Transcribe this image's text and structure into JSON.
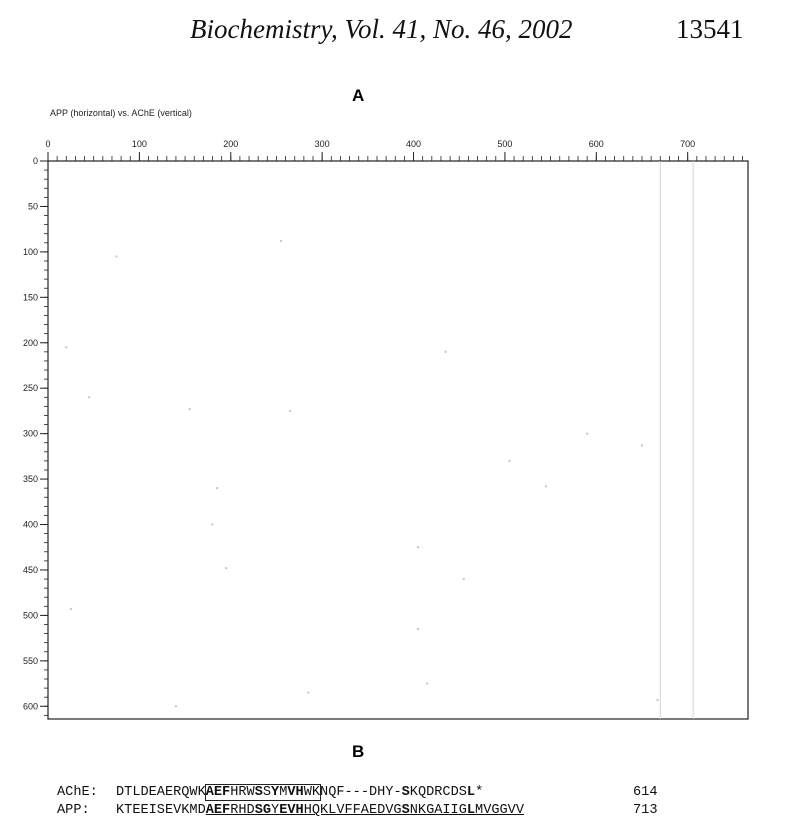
{
  "header": {
    "journal": "Biochemistry, Vol. 41, No. 46, 2002",
    "page": 13541
  },
  "panel_a_label": "A",
  "panel_b_label": "B",
  "chart_data": {
    "type": "scatter",
    "title": "APP (horizontal) vs. AChE (vertical)",
    "x": [
      75,
      255,
      20,
      435,
      45,
      155,
      265,
      650,
      590,
      505,
      545,
      185,
      180,
      195,
      455,
      405,
      25,
      405,
      415,
      285,
      140,
      667
    ],
    "y": [
      105,
      88,
      205,
      210,
      260,
      273,
      275,
      313,
      300,
      330,
      358,
      360,
      400,
      448,
      460,
      425,
      493,
      515,
      575,
      585,
      600,
      593
    ],
    "color": "#c8c8c8",
    "vertical_lines": [
      670,
      706
    ],
    "xlim": [
      0,
      766
    ],
    "ylim": [
      0,
      614
    ],
    "xticks": [
      0,
      100,
      200,
      300,
      400,
      500,
      600,
      700
    ],
    "yticks": [
      0,
      50,
      100,
      150,
      200,
      250,
      300,
      350,
      400,
      450,
      500,
      550,
      600
    ],
    "minor_tick_step": 10
  },
  "alignment": {
    "rows": [
      {
        "label": "AChE:",
        "number": 614,
        "segments": [
          {
            "text": "DTLDEAERQWK"
          },
          {
            "text": "AEF",
            "bold": true,
            "boxed": true
          },
          {
            "text": "HRW",
            "boxed": true
          },
          {
            "text": "S",
            "bold": true,
            "boxed": true
          },
          {
            "text": "S",
            "boxed": true
          },
          {
            "text": "Y",
            "bold": true,
            "boxed": true
          },
          {
            "text": "M",
            "boxed": true
          },
          {
            "text": "VH",
            "bold": true,
            "boxed": true
          },
          {
            "text": "WK",
            "boxed": true
          },
          {
            "text": "NQF---DHY-"
          },
          {
            "text": "S",
            "bold": true
          },
          {
            "text": "KQDRCDS"
          },
          {
            "text": "L",
            "bold": true
          },
          {
            "text": "*"
          }
        ]
      },
      {
        "label": "APP:",
        "number": 713,
        "segments": [
          {
            "text": "KTEEISEVKMD"
          },
          {
            "text": "AEF",
            "bold": true,
            "underlined": true
          },
          {
            "text": "RHD",
            "underlined": true
          },
          {
            "text": "SG",
            "bold": true,
            "underlined": true
          },
          {
            "text": "Y",
            "underlined": true
          },
          {
            "text": "EVH",
            "bold": true,
            "underlined": true
          },
          {
            "text": "HQKLVFFAEDVG",
            "underlined": true
          },
          {
            "text": "S",
            "bold": true,
            "underlined": true
          },
          {
            "text": "NKGAIIG",
            "underlined": true
          },
          {
            "text": "L",
            "bold": true,
            "underlined": true
          },
          {
            "text": "MVGGVV",
            "underlined": true
          }
        ]
      }
    ]
  }
}
